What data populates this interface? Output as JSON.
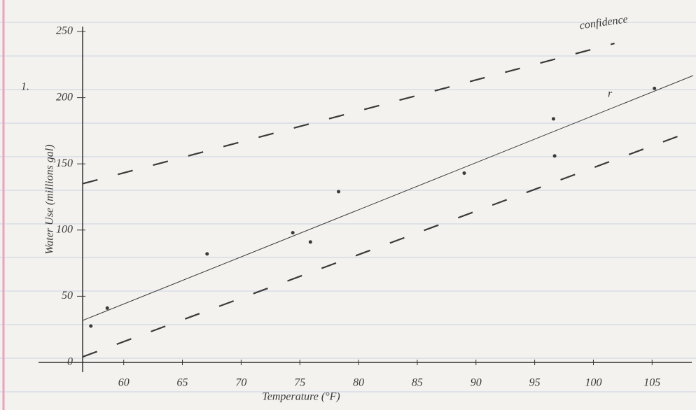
{
  "chart_data": {
    "type": "scatter",
    "x_label": "Temperature (°F)",
    "y_label": "Water Use (millions gal)",
    "annotations": [
      "1.",
      "confidence",
      "r"
    ],
    "xlim": [
      56.5,
      108.5
    ],
    "ylim": [
      0,
      250
    ],
    "xticks": [
      60,
      65,
      70,
      75,
      80,
      85,
      90,
      95,
      100,
      105
    ],
    "yticks": [
      0,
      50,
      100,
      150,
      200,
      250
    ],
    "color": "#3a3a3a",
    "points": {
      "x": [
        57.2,
        58.6,
        67.1,
        74.4,
        75.9,
        78.3,
        89,
        96.6,
        96.7,
        105.2
      ],
      "y": [
        27.5,
        41,
        82,
        98,
        91,
        129,
        143,
        184,
        156,
        207
      ]
    },
    "fit": {
      "x": [
        56.5,
        108.5
      ],
      "y": [
        31.7,
        216.7
      ]
    },
    "confidence_upper": {
      "x": [
        56.5,
        101.8
      ],
      "y": [
        135,
        241
      ]
    },
    "confidence_lower": {
      "x": [
        56.5,
        108.3
      ],
      "y": [
        4.2,
        174.4
      ]
    }
  }
}
